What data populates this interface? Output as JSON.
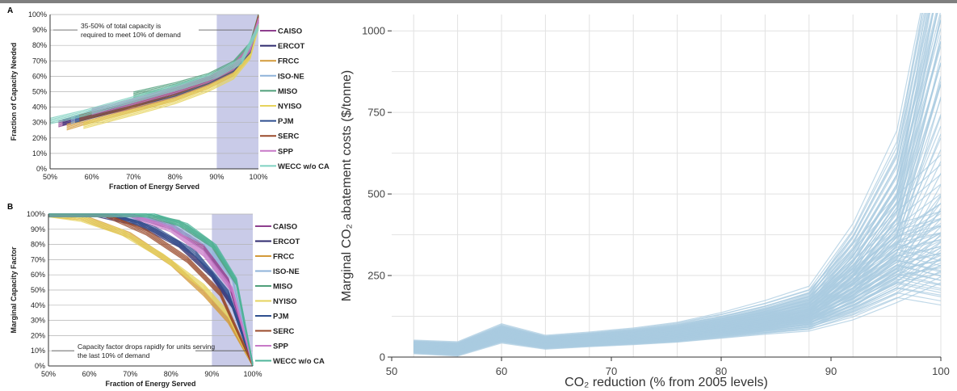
{
  "chart_data": [
    {
      "type": "line",
      "panel": "A",
      "xlabel": "Fraction of Energy Served",
      "ylabel": "Fraction of Capacity Needed",
      "x_ticks": [
        "50%",
        "60%",
        "70%",
        "80%",
        "90%",
        "100%"
      ],
      "y_ticks": [
        "0%",
        "10%",
        "20%",
        "30%",
        "40%",
        "50%",
        "60%",
        "70%",
        "80%",
        "90%",
        "100%"
      ],
      "xlim": [
        50,
        100
      ],
      "ylim": [
        0,
        100
      ],
      "shaded_region": [
        90,
        100
      ],
      "annotation": "35-50% of total capacity is required to meet 10% of demand",
      "annotation_y": 90,
      "grid": "horizontal",
      "legend_position": "right",
      "series": [
        {
          "name": "CAISO",
          "color": "#8e3f8e",
          "x": [
            52,
            60,
            70,
            80,
            88,
            94,
            98,
            100
          ],
          "y": [
            29,
            35,
            41,
            48,
            56,
            64,
            76,
            95
          ]
        },
        {
          "name": "ERCOT",
          "color": "#2e2a6e",
          "x": [
            53,
            60,
            70,
            80,
            88,
            94,
            98,
            100
          ],
          "y": [
            30,
            35,
            42,
            49,
            57,
            65,
            77,
            97
          ]
        },
        {
          "name": "FRCC",
          "color": "#d39a3a",
          "x": [
            54,
            60,
            70,
            80,
            88,
            94,
            98,
            100
          ],
          "y": [
            27,
            32,
            39,
            46,
            54,
            62,
            74,
            94
          ]
        },
        {
          "name": "ISO-NE",
          "color": "#8fb3d9",
          "x": [
            55,
            60,
            70,
            80,
            88,
            94,
            98,
            100
          ],
          "y": [
            31,
            36,
            43,
            50,
            58,
            66,
            78,
            96
          ]
        },
        {
          "name": "MISO",
          "color": "#4f9f7a",
          "x": [
            70,
            75,
            80,
            88,
            94,
            98,
            100
          ],
          "y": [
            48,
            51,
            54,
            60,
            68,
            80,
            100
          ]
        },
        {
          "name": "NYISO",
          "color": "#e6d35c",
          "x": [
            58,
            65,
            72,
            80,
            88,
            94,
            98,
            100
          ],
          "y": [
            28,
            33,
            38,
            44,
            52,
            60,
            73,
            93
          ]
        },
        {
          "name": "PJM",
          "color": "#2f4f8f",
          "x": [
            56,
            62,
            70,
            80,
            88,
            94,
            98,
            100
          ],
          "y": [
            32,
            36,
            42,
            49,
            57,
            65,
            77,
            97
          ]
        },
        {
          "name": "SERC",
          "color": "#9a4a2a",
          "x": [
            57,
            63,
            70,
            80,
            88,
            94,
            98,
            100
          ],
          "y": [
            33,
            37,
            42,
            50,
            58,
            66,
            78,
            98
          ]
        },
        {
          "name": "SPP",
          "color": "#c879c8",
          "x": [
            60,
            66,
            72,
            80,
            88,
            94,
            98,
            100
          ],
          "y": [
            37,
            41,
            45,
            51,
            58,
            66,
            78,
            96
          ]
        },
        {
          "name": "WECC w/o CA",
          "color": "#7fd1c1",
          "x": [
            50,
            58,
            66,
            74,
            82,
            90,
            96,
            100
          ],
          "y": [
            31,
            36,
            42,
            48,
            54,
            61,
            70,
            92
          ]
        }
      ]
    },
    {
      "type": "line",
      "panel": "B",
      "xlabel": "Fraction of Energy Served",
      "ylabel": "Marginal Capacity Factor",
      "x_ticks": [
        "50%",
        "60%",
        "70%",
        "80%",
        "90%",
        "100%"
      ],
      "y_ticks": [
        "0%",
        "10%",
        "20%",
        "30%",
        "40%",
        "50%",
        "60%",
        "70%",
        "80%",
        "90%",
        "100%"
      ],
      "xlim": [
        50,
        100
      ],
      "ylim": [
        0,
        100
      ],
      "shaded_region": [
        90,
        100
      ],
      "annotation": "Capacity factor drops rapidly for units serving the last 10% of demand",
      "annotation_y": 10,
      "grid": "horizontal",
      "legend_position": "right",
      "series": [
        {
          "name": "CAISO",
          "color": "#8e3f8e",
          "x": [
            50,
            70,
            80,
            88,
            94,
            100
          ],
          "y": [
            100,
            100,
            92,
            78,
            56,
            0
          ]
        },
        {
          "name": "ERCOT",
          "color": "#2e2a6e",
          "x": [
            50,
            62,
            72,
            82,
            90,
            95,
            100
          ],
          "y": [
            100,
            100,
            94,
            80,
            60,
            40,
            0
          ]
        },
        {
          "name": "FRCC",
          "color": "#d39a3a",
          "x": [
            50,
            58,
            70,
            80,
            88,
            94,
            100
          ],
          "y": [
            100,
            98,
            86,
            68,
            48,
            30,
            0
          ]
        },
        {
          "name": "ISO-NE",
          "color": "#8fb3d9",
          "x": [
            50,
            68,
            78,
            88,
            95,
            100
          ],
          "y": [
            100,
            100,
            95,
            82,
            58,
            0
          ]
        },
        {
          "name": "MISO",
          "color": "#4f9f7a",
          "x": [
            50,
            74,
            82,
            90,
            96,
            100
          ],
          "y": [
            100,
            100,
            94,
            80,
            55,
            0
          ]
        },
        {
          "name": "NYISO",
          "color": "#e6d35c",
          "x": [
            50,
            58,
            68,
            78,
            88,
            94,
            100
          ],
          "y": [
            100,
            97,
            88,
            72,
            52,
            34,
            0
          ]
        },
        {
          "name": "PJM",
          "color": "#2f4f8f",
          "x": [
            50,
            66,
            76,
            86,
            94,
            100
          ],
          "y": [
            100,
            100,
            90,
            74,
            48,
            0
          ]
        },
        {
          "name": "SERC",
          "color": "#9a4a2a",
          "x": [
            50,
            64,
            74,
            84,
            92,
            100
          ],
          "y": [
            100,
            100,
            88,
            70,
            48,
            0
          ]
        },
        {
          "name": "SPP",
          "color": "#c879c8",
          "x": [
            50,
            70,
            80,
            88,
            95,
            100
          ],
          "y": [
            100,
            100,
            90,
            74,
            50,
            0
          ]
        },
        {
          "name": "WECC w/o CA",
          "color": "#4fb59a",
          "x": [
            50,
            76,
            84,
            91,
            96,
            100
          ],
          "y": [
            100,
            100,
            92,
            78,
            56,
            0
          ]
        }
      ]
    },
    {
      "type": "line",
      "xlabel": "CO₂ reduction (% from 2005 levels)",
      "ylabel": "Marginal CO₂ abatement costs ($/tonne)",
      "x_ticks": [
        "50",
        "60",
        "70",
        "80",
        "90",
        "100"
      ],
      "y_ticks": [
        "0",
        "250",
        "500",
        "750",
        "1000"
      ],
      "xlim": [
        50,
        100
      ],
      "ylim": [
        0,
        1050
      ],
      "grid": "both",
      "line_color": "#a9cbe0",
      "series": [
        {
          "x": [
            52,
            56,
            60,
            64,
            68,
            72,
            76,
            80,
            84,
            88,
            92,
            96,
            100
          ],
          "y": [
            30,
            25,
            70,
            45,
            52,
            60,
            72,
            90,
            110,
            130,
            250,
            420,
            1050
          ]
        },
        {
          "x": [
            52,
            56,
            60,
            64,
            68,
            72,
            76,
            80,
            84,
            88,
            92,
            96,
            100
          ],
          "y": [
            35,
            30,
            80,
            50,
            58,
            68,
            80,
            100,
            125,
            160,
            300,
            500,
            1100
          ]
        },
        {
          "x": [
            52,
            56,
            60,
            64,
            68,
            72,
            76,
            80,
            84,
            88,
            92,
            96,
            100
          ],
          "y": [
            25,
            20,
            60,
            40,
            46,
            54,
            64,
            80,
            98,
            115,
            200,
            320,
            600
          ]
        },
        {
          "x": [
            52,
            56,
            60,
            64,
            68,
            72,
            76,
            80,
            84,
            88,
            92,
            96,
            100
          ],
          "y": [
            40,
            35,
            90,
            55,
            62,
            72,
            86,
            110,
            140,
            175,
            330,
            560,
            1100
          ]
        },
        {
          "x": [
            52,
            56,
            60,
            64,
            68,
            72,
            76,
            80,
            84,
            88,
            92,
            96,
            100
          ],
          "y": [
            28,
            22,
            65,
            42,
            48,
            56,
            66,
            84,
            100,
            120,
            180,
            260,
            400
          ]
        },
        {
          "x": [
            52,
            56,
            60,
            64,
            68,
            72,
            76,
            80,
            84,
            88,
            92,
            96,
            100
          ],
          "y": [
            32,
            28,
            75,
            48,
            55,
            64,
            76,
            96,
            118,
            150,
            240,
            330,
            360
          ]
        },
        {
          "x": [
            52,
            56,
            60,
            64,
            68,
            72,
            76,
            80,
            84,
            88,
            92,
            96,
            100
          ],
          "y": [
            22,
            15,
            55,
            36,
            42,
            50,
            60,
            76,
            92,
            105,
            150,
            220,
            300
          ]
        },
        {
          "x": [
            52,
            56,
            60,
            64,
            68,
            72,
            76,
            80,
            84,
            88,
            92,
            96,
            100
          ],
          "y": [
            38,
            32,
            85,
            52,
            60,
            70,
            84,
            106,
            132,
            165,
            280,
            400,
            500
          ]
        },
        {
          "x": [
            52,
            56,
            60,
            64,
            68,
            72,
            76,
            80,
            84,
            88,
            92,
            96,
            100
          ],
          "y": [
            30,
            26,
            72,
            46,
            53,
            62,
            74,
            93,
            114,
            140,
            220,
            300,
            340
          ]
        },
        {
          "x": [
            52,
            56,
            60,
            64,
            68,
            72,
            76,
            80,
            84,
            88,
            92,
            96,
            100
          ],
          "y": [
            26,
            18,
            62,
            40,
            46,
            55,
            66,
            85,
            104,
            125,
            190,
            280,
            250
          ]
        },
        {
          "x": [
            52,
            56,
            60,
            64,
            68,
            72,
            76,
            80,
            84,
            88,
            92,
            96,
            100
          ],
          "y": [
            36,
            30,
            82,
            50,
            57,
            66,
            78,
            98,
            122,
            155,
            310,
            520,
            1100
          ]
        },
        {
          "x": [
            52,
            56,
            60,
            64,
            68,
            72,
            76,
            80,
            84,
            88,
            92,
            96,
            100
          ],
          "y": [
            33,
            27,
            78,
            47,
            54,
            63,
            75,
            95,
            116,
            145,
            260,
            450,
            900
          ]
        },
        {
          "x": [
            52,
            56,
            60,
            64,
            68,
            72,
            76,
            80,
            84,
            88,
            92,
            96,
            100
          ],
          "y": [
            29,
            24,
            68,
            44,
            50,
            58,
            70,
            88,
            108,
            135,
            210,
            310,
            380
          ]
        },
        {
          "x": [
            52,
            56,
            60,
            64,
            68,
            72,
            76,
            80,
            84,
            88,
            92,
            96,
            100
          ],
          "y": [
            24,
            17,
            58,
            38,
            44,
            52,
            62,
            78,
            96,
            112,
            170,
            240,
            210
          ]
        }
      ]
    }
  ]
}
